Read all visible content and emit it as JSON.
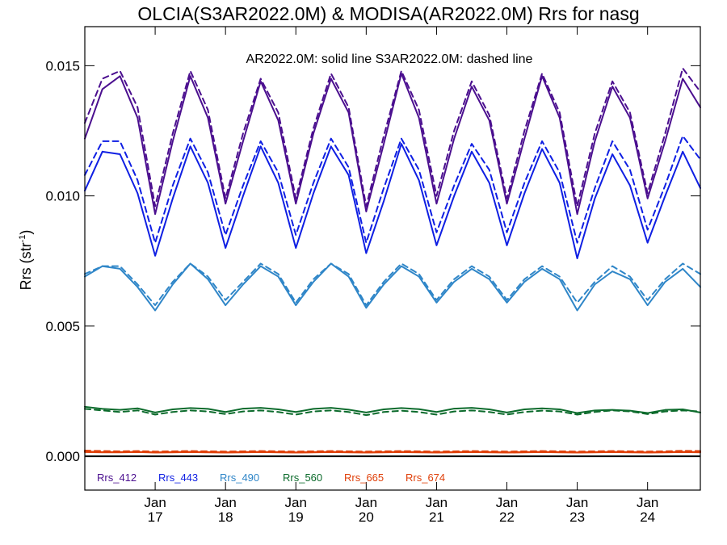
{
  "chart_data": {
    "type": "line",
    "title": "OLCIA(S3AR2022.0M) & MODISA(AR2022.0M)  Rrs for nasg",
    "ylabel": "Rrs (str",
    "ylabel_sup": "-1",
    "ylabel_close": ")",
    "annotation": "AR2022.0M: solid line   S3AR2022.0M: dashed line",
    "ylim": [
      -0.0013,
      0.0165
    ],
    "xlim": [
      2016.0,
      2024.75
    ],
    "grid": false,
    "legend_position": "bottom",
    "y_ticks": [
      {
        "value": 0.0,
        "label": "0.000"
      },
      {
        "value": 0.005,
        "label": "0.005"
      },
      {
        "value": 0.01,
        "label": "0.010"
      },
      {
        "value": 0.015,
        "label": "0.015"
      }
    ],
    "x_ticks": [
      {
        "value": 2017,
        "month": "Jan",
        "year": "17"
      },
      {
        "value": 2018,
        "month": "Jan",
        "year": "18"
      },
      {
        "value": 2019,
        "month": "Jan",
        "year": "19"
      },
      {
        "value": 2020,
        "month": "Jan",
        "year": "20"
      },
      {
        "value": 2021,
        "month": "Jan",
        "year": "21"
      },
      {
        "value": 2022,
        "month": "Jan",
        "year": "22"
      },
      {
        "value": 2023,
        "month": "Jan",
        "year": "23"
      },
      {
        "value": 2024,
        "month": "Jan",
        "year": "24"
      }
    ],
    "x": [
      2016.0,
      2016.25,
      2016.5,
      2016.75,
      2017.0,
      2017.25,
      2017.5,
      2017.75,
      2018.0,
      2018.25,
      2018.5,
      2018.75,
      2019.0,
      2019.25,
      2019.5,
      2019.75,
      2020.0,
      2020.25,
      2020.5,
      2020.75,
      2021.0,
      2021.25,
      2021.5,
      2021.75,
      2022.0,
      2022.25,
      2022.5,
      2022.75,
      2023.0,
      2023.25,
      2023.5,
      2023.75,
      2024.0,
      2024.25,
      2024.5,
      2024.75
    ],
    "series": [
      {
        "name": "Rrs_412",
        "color": "#4b0f8f",
        "solid": [
          0.0122,
          0.0141,
          0.0146,
          0.013,
          0.0093,
          0.0121,
          0.0146,
          0.013,
          0.0097,
          0.0121,
          0.0144,
          0.0129,
          0.0097,
          0.0124,
          0.0145,
          0.0132,
          0.0094,
          0.012,
          0.0147,
          0.013,
          0.0097,
          0.0122,
          0.0142,
          0.0129,
          0.0097,
          0.0122,
          0.0146,
          0.013,
          0.0093,
          0.0121,
          0.0142,
          0.013,
          0.0099,
          0.0121,
          0.0145,
          0.0134
        ],
        "dashed": [
          0.0128,
          0.0145,
          0.0148,
          0.0134,
          0.0096,
          0.0124,
          0.0148,
          0.0133,
          0.0099,
          0.0124,
          0.0145,
          0.0132,
          0.0099,
          0.0126,
          0.0147,
          0.0134,
          0.0096,
          0.0123,
          0.0148,
          0.0133,
          0.01,
          0.0125,
          0.0144,
          0.0131,
          0.0099,
          0.0125,
          0.0147,
          0.0132,
          0.0096,
          0.0124,
          0.0144,
          0.0132,
          0.0101,
          0.0124,
          0.0149,
          0.014
        ]
      },
      {
        "name": "Rrs_443",
        "color": "#0f1fe3",
        "solid": [
          0.0102,
          0.0117,
          0.0116,
          0.0101,
          0.0077,
          0.0099,
          0.0119,
          0.0105,
          0.008,
          0.01,
          0.0119,
          0.0105,
          0.008,
          0.0101,
          0.0119,
          0.0108,
          0.0078,
          0.0098,
          0.012,
          0.0106,
          0.0081,
          0.01,
          0.0117,
          0.0105,
          0.0081,
          0.0101,
          0.0118,
          0.0105,
          0.0076,
          0.0099,
          0.0116,
          0.0104,
          0.0082,
          0.01,
          0.0117,
          0.0103
        ],
        "dashed": [
          0.0108,
          0.0121,
          0.0121,
          0.0106,
          0.0082,
          0.0104,
          0.0122,
          0.0109,
          0.0085,
          0.0104,
          0.0121,
          0.0109,
          0.0085,
          0.0105,
          0.0122,
          0.0111,
          0.0082,
          0.0103,
          0.0122,
          0.011,
          0.0086,
          0.0104,
          0.012,
          0.011,
          0.0086,
          0.0105,
          0.0121,
          0.0109,
          0.0082,
          0.0103,
          0.0121,
          0.011,
          0.0087,
          0.0104,
          0.0123,
          0.0114
        ]
      },
      {
        "name": "Rrs_490",
        "color": "#2f86c8",
        "solid": [
          0.0069,
          0.0073,
          0.0072,
          0.0065,
          0.0056,
          0.0066,
          0.0074,
          0.0068,
          0.0058,
          0.0066,
          0.0073,
          0.0069,
          0.0058,
          0.0067,
          0.0074,
          0.0069,
          0.0057,
          0.0066,
          0.0073,
          0.0069,
          0.0059,
          0.0067,
          0.0072,
          0.0068,
          0.0059,
          0.0067,
          0.0072,
          0.0068,
          0.0056,
          0.0066,
          0.0071,
          0.0068,
          0.0058,
          0.0067,
          0.0072,
          0.0065
        ],
        "dashed": [
          0.007,
          0.0073,
          0.0073,
          0.0066,
          0.0058,
          0.0067,
          0.0074,
          0.0069,
          0.006,
          0.0067,
          0.0074,
          0.007,
          0.0059,
          0.0068,
          0.0074,
          0.007,
          0.0058,
          0.0067,
          0.0074,
          0.007,
          0.006,
          0.0068,
          0.0073,
          0.0069,
          0.006,
          0.0068,
          0.0073,
          0.0069,
          0.0059,
          0.0067,
          0.0073,
          0.0069,
          0.006,
          0.0068,
          0.0074,
          0.007
        ]
      },
      {
        "name": "Rrs_560",
        "color": "#0c6b2c",
        "solid": [
          0.0019,
          0.00182,
          0.00178,
          0.00184,
          0.00168,
          0.0018,
          0.00185,
          0.00182,
          0.0017,
          0.00183,
          0.00186,
          0.0018,
          0.0017,
          0.00182,
          0.00186,
          0.00179,
          0.00168,
          0.0018,
          0.00185,
          0.00181,
          0.0017,
          0.00183,
          0.00186,
          0.0018,
          0.00168,
          0.0018,
          0.00184,
          0.0018,
          0.00166,
          0.00176,
          0.00178,
          0.00175,
          0.00166,
          0.00178,
          0.0018,
          0.00168
        ],
        "dashed": [
          0.00182,
          0.00176,
          0.0017,
          0.00176,
          0.0016,
          0.0017,
          0.00176,
          0.00172,
          0.00162,
          0.00172,
          0.00176,
          0.0017,
          0.0016,
          0.00172,
          0.00176,
          0.0017,
          0.00158,
          0.0017,
          0.00175,
          0.0017,
          0.0016,
          0.00172,
          0.00176,
          0.0017,
          0.0016,
          0.0017,
          0.00175,
          0.00172,
          0.0016,
          0.0017,
          0.00176,
          0.00172,
          0.00162,
          0.00172,
          0.00176,
          0.00172
        ]
      },
      {
        "name": "Rrs_665",
        "color": "#e0400a",
        "solid": [
          0.00018,
          0.00016,
          0.00016,
          0.00017,
          0.00015,
          0.00016,
          0.00017,
          0.00016,
          0.00015,
          0.00016,
          0.00017,
          0.00016,
          0.00015,
          0.00016,
          0.00017,
          0.00016,
          0.00015,
          0.00016,
          0.00017,
          0.00016,
          0.00015,
          0.00016,
          0.00017,
          0.00016,
          0.00015,
          0.00016,
          0.00017,
          0.00016,
          0.00015,
          0.00016,
          0.00017,
          0.00016,
          0.00015,
          0.00016,
          0.00017,
          0.00016
        ],
        "dashed": [
          0.00022,
          0.0002,
          0.00019,
          0.0002,
          0.00018,
          0.00019,
          0.0002,
          0.00019,
          0.00018,
          0.00019,
          0.0002,
          0.00019,
          0.00018,
          0.00019,
          0.0002,
          0.00019,
          0.00018,
          0.00019,
          0.0002,
          0.00019,
          0.00018,
          0.00019,
          0.0002,
          0.00019,
          0.00018,
          0.00019,
          0.0002,
          0.00019,
          0.00018,
          0.00019,
          0.0002,
          0.00019,
          0.00018,
          0.00019,
          0.00021,
          0.0002
        ]
      },
      {
        "name": "Rrs_674",
        "color": "#e0400a",
        "solid": [
          0.00016,
          0.00015,
          0.00015,
          0.00016,
          0.00014,
          0.00015,
          0.00016,
          0.00015,
          0.00014,
          0.00015,
          0.00016,
          0.00015,
          0.00014,
          0.00015,
          0.00016,
          0.00015,
          0.00014,
          0.00015,
          0.00016,
          0.00015,
          0.00014,
          0.00015,
          0.00016,
          0.00015,
          0.00014,
          0.00015,
          0.00016,
          0.00015,
          0.00014,
          0.00015,
          0.00016,
          0.00015,
          0.00014,
          0.00015,
          0.00016,
          0.00015
        ],
        "dashed": [
          0.0002,
          0.00018,
          0.00018,
          0.00019,
          0.00017,
          0.00018,
          0.00019,
          0.00018,
          0.00017,
          0.00018,
          0.00019,
          0.00018,
          0.00017,
          0.00018,
          0.00019,
          0.00018,
          0.00017,
          0.00018,
          0.00019,
          0.00018,
          0.00017,
          0.00018,
          0.00019,
          0.00018,
          0.00017,
          0.00018,
          0.00019,
          0.00018,
          0.00017,
          0.00018,
          0.00019,
          0.00018,
          0.00017,
          0.00018,
          0.0002,
          0.00019
        ]
      }
    ]
  }
}
